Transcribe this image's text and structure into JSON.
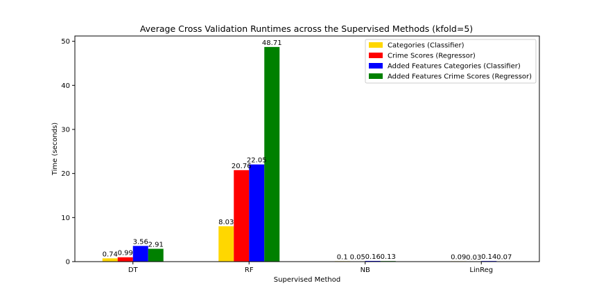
{
  "chart_data": {
    "type": "bar",
    "title": "Average Cross Validation Runtimes across the Supervised Methods (kfold=5)",
    "xlabel": "Supervised Method",
    "ylabel": "Time (seconds)",
    "ylim": [
      0,
      51.2
    ],
    "yticks": [
      0,
      10,
      20,
      30,
      40,
      50
    ],
    "grid": false,
    "legend_position": "top-right",
    "categories": [
      "DT",
      "RF",
      "NB",
      "LinReg"
    ],
    "series": [
      {
        "name": "Categories (Classifier)",
        "color": "#FFD700",
        "values": [
          0.74,
          8.03,
          0.1,
          0.09
        ],
        "labels": [
          "0.74",
          "8.03",
          "0.1",
          "0.09"
        ]
      },
      {
        "name": "Crime Scores (Regressor)",
        "color": "#FF0000",
        "values": [
          0.99,
          20.76,
          0.05,
          0.03
        ],
        "labels": [
          "0.99",
          "20.76",
          "0.05",
          "0.03"
        ]
      },
      {
        "name": "Added Features Categories (Classifier)",
        "color": "#0000FF",
        "values": [
          3.56,
          22.05,
          0.16,
          0.14
        ],
        "labels": [
          "3.56",
          "22.05",
          "0.16",
          "0.14"
        ]
      },
      {
        "name": "Added Features Crime Scores (Regressor)",
        "color": "#008000",
        "values": [
          2.91,
          48.71,
          0.13,
          0.07
        ],
        "labels": [
          "2.91",
          "48.71",
          "0.13",
          "0.07"
        ]
      }
    ]
  }
}
